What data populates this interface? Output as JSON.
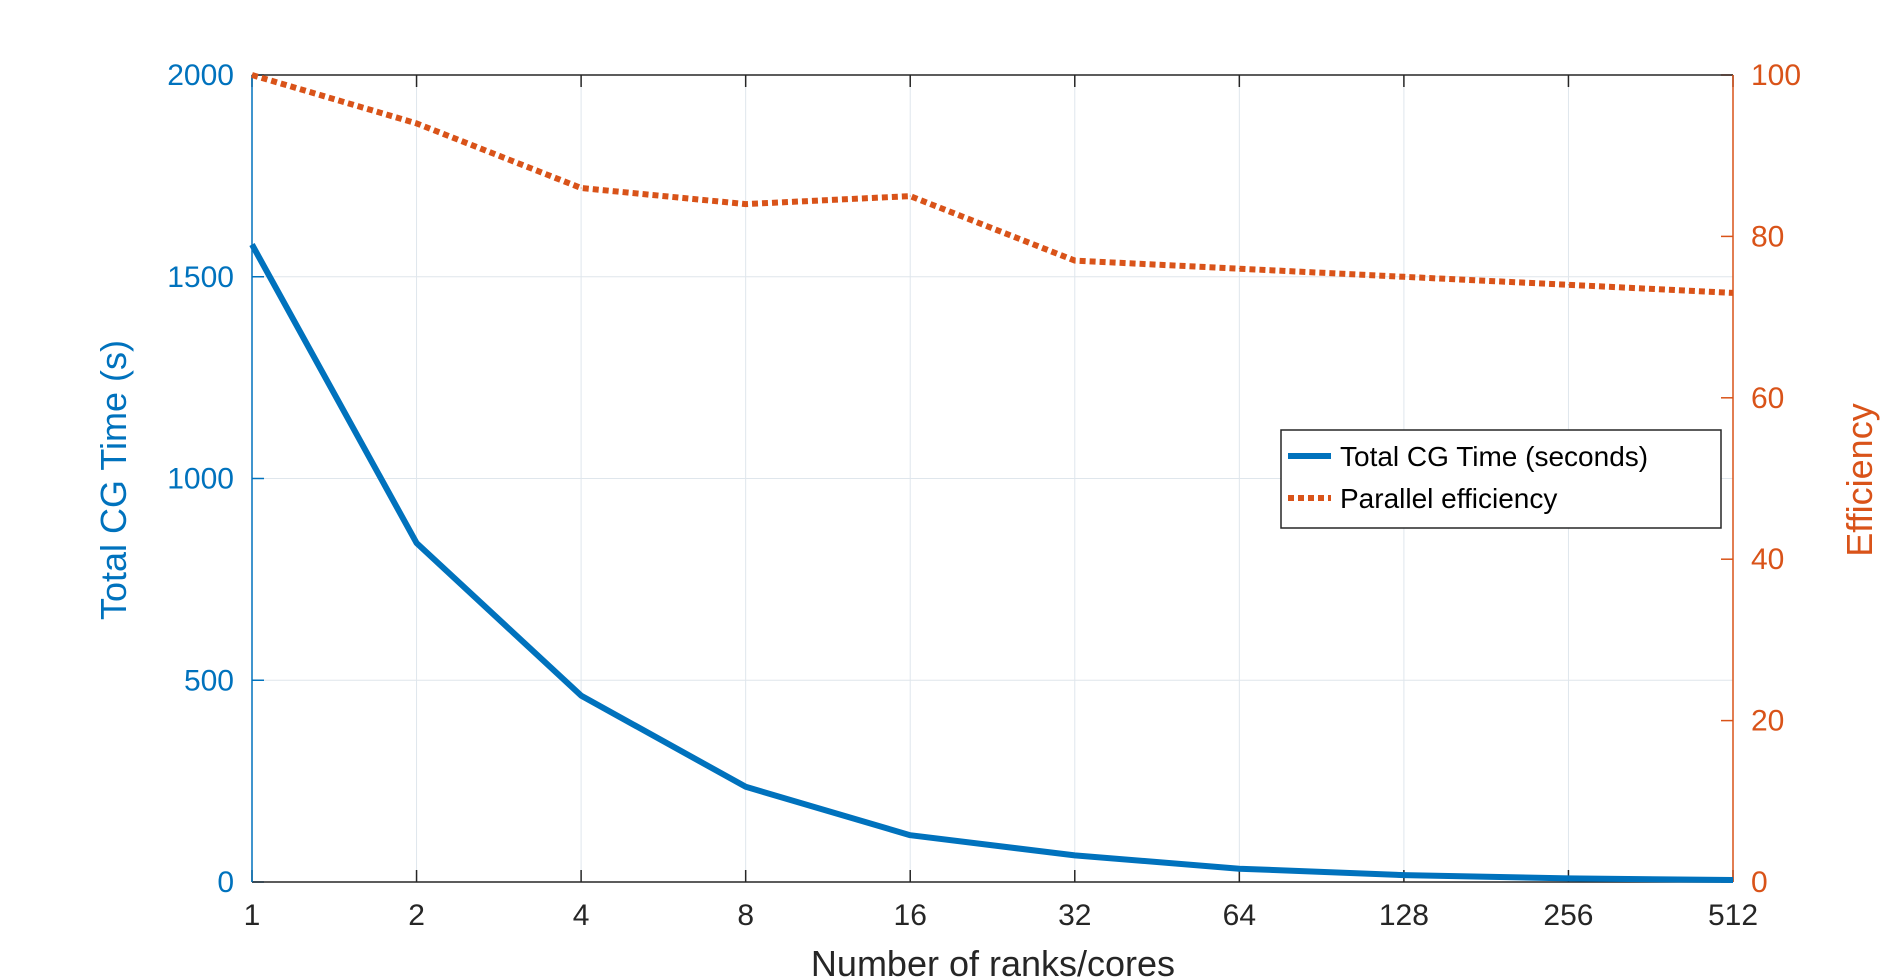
{
  "chart_data": {
    "type": "line",
    "title": "",
    "xlabel": "Number of ranks/cores",
    "x_scale": "log2",
    "categories": [
      "1",
      "2",
      "4",
      "8",
      "16",
      "32",
      "64",
      "128",
      "256",
      "512"
    ],
    "x": [
      1,
      2,
      4,
      8,
      16,
      32,
      64,
      128,
      256,
      512
    ],
    "left_axis": {
      "ylabel": "Total CG Time (s)",
      "ylim": [
        0,
        2000
      ],
      "ticks": [
        "0",
        "500",
        "1000",
        "1500",
        "2000"
      ],
      "color": "#0072BD"
    },
    "right_axis": {
      "ylabel": "Efficiency",
      "ylim": [
        0,
        100
      ],
      "ticks": [
        "0",
        "20",
        "40",
        "60",
        "80",
        "100"
      ],
      "color": "#D95319"
    },
    "series": [
      {
        "name": "Total CG Time (seconds)",
        "axis": "left",
        "style": "solid",
        "color": "#0072BD",
        "values": [
          1580,
          840,
          462,
          236,
          116,
          66,
          33,
          17,
          9,
          5
        ]
      },
      {
        "name": "Parallel efficiency",
        "axis": "right",
        "style": "dotted",
        "color": "#D95319",
        "values": [
          100,
          94,
          86,
          84,
          85,
          77,
          76,
          75,
          74,
          73
        ]
      }
    ],
    "grid": true,
    "legend_position": "right-center"
  }
}
